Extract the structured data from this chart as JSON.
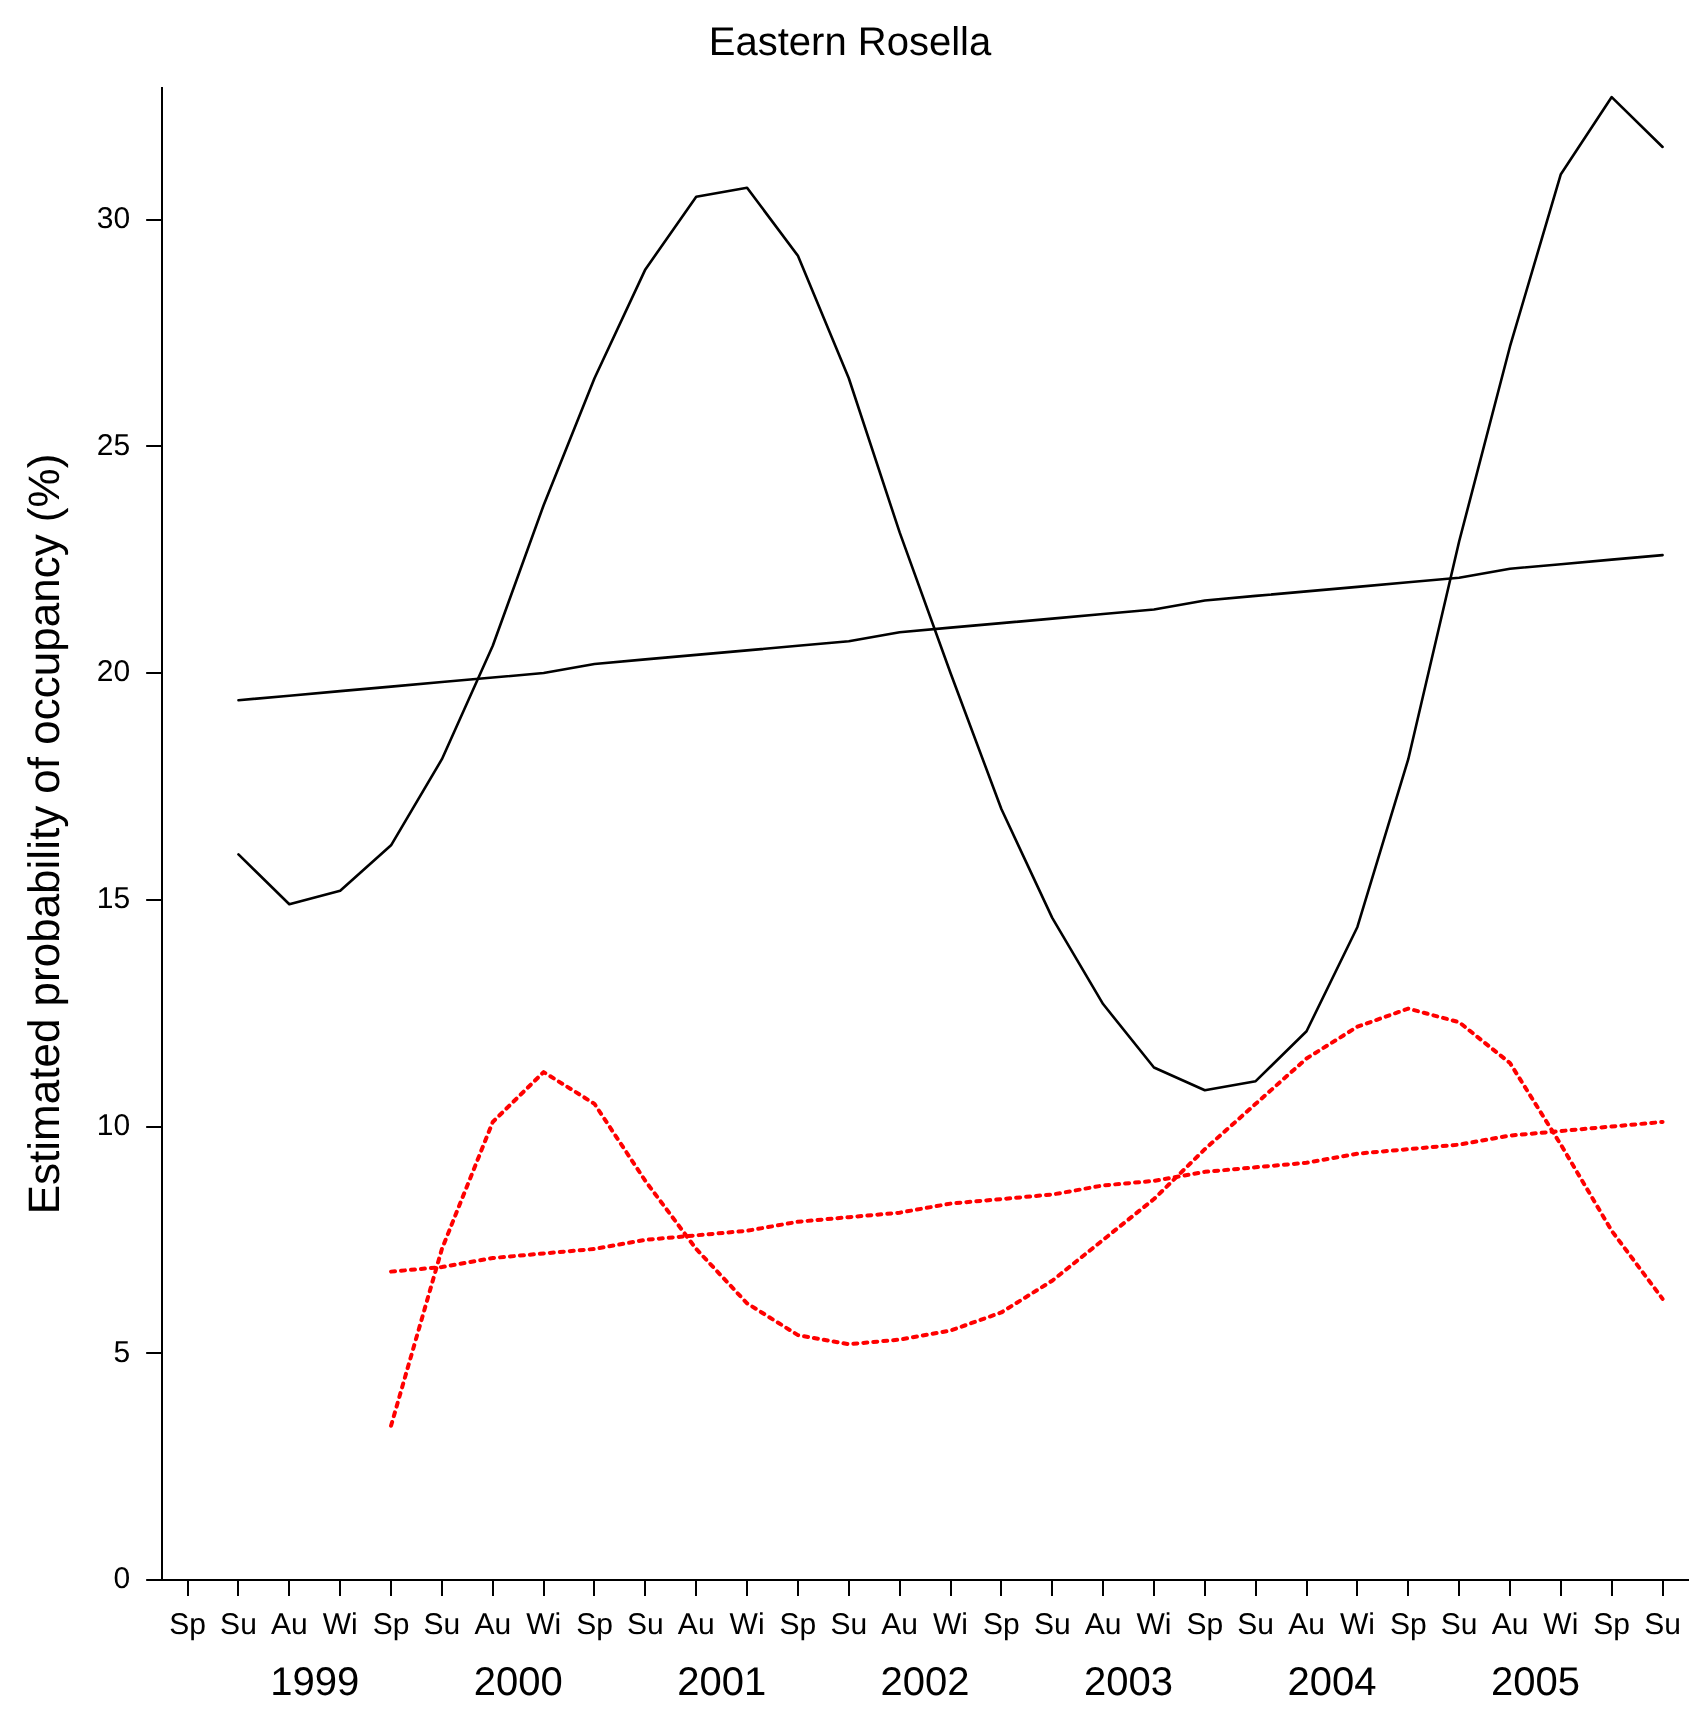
{
  "chart_data": {
    "type": "line",
    "title": "Eastern Rosella",
    "ylabel": "Estimated probability of occupancy (%)",
    "categories": [
      "Sp",
      "Su",
      "Au",
      "Wi",
      "Sp",
      "Su",
      "Au",
      "Wi",
      "Sp",
      "Su",
      "Au",
      "Wi",
      "Sp",
      "Su",
      "Au",
      "Wi",
      "Sp",
      "Su",
      "Au",
      "Wi",
      "Sp",
      "Su",
      "Au",
      "Wi",
      "Sp",
      "Su",
      "Au",
      "Wi",
      "Sp",
      "Su"
    ],
    "annotations": [
      "1999",
      "2000",
      "2001",
      "2002",
      "2003",
      "2004",
      "2005"
    ],
    "ylim": [
      0,
      32.9
    ],
    "yticks": [
      0,
      5,
      10,
      15,
      20,
      25,
      30
    ],
    "grid": false,
    "legend": false,
    "marker": "none",
    "series": [
      {
        "color": "#000000",
        "line_style": "solid",
        "values": [
          null,
          16.0,
          14.9,
          15.2,
          16.2,
          18.1,
          20.6,
          23.7,
          26.5,
          28.9,
          30.5,
          30.7,
          29.2,
          26.5,
          23.1,
          20.0,
          17.0,
          14.6,
          12.7,
          11.3,
          10.8,
          11.0,
          12.1,
          14.4,
          18.1,
          22.9,
          27.2,
          31.0,
          32.7,
          31.6
        ]
      },
      {
        "color": "#000000",
        "line_style": "solid",
        "values": [
          null,
          19.4,
          19.5,
          19.6,
          19.7,
          19.8,
          19.9,
          20.0,
          20.2,
          20.3,
          20.4,
          20.5,
          20.6,
          20.7,
          20.9,
          21.0,
          21.1,
          21.2,
          21.3,
          21.4,
          21.6,
          21.7,
          21.8,
          21.9,
          22.0,
          22.1,
          22.3,
          22.4,
          22.5,
          22.6
        ]
      },
      {
        "color": "#ff0000",
        "line_style": "dotted",
        "values": [
          null,
          null,
          null,
          null,
          3.4,
          7.3,
          10.1,
          11.2,
          10.5,
          8.8,
          7.3,
          6.1,
          5.4,
          5.2,
          5.3,
          5.5,
          5.9,
          6.6,
          7.5,
          8.4,
          9.5,
          10.5,
          11.5,
          12.2,
          12.6,
          12.3,
          11.4,
          9.6,
          7.7,
          6.2
        ]
      },
      {
        "color": "#ff0000",
        "line_style": "dotted",
        "values": [
          null,
          null,
          null,
          null,
          6.8,
          6.9,
          7.1,
          7.2,
          7.3,
          7.5,
          7.6,
          7.7,
          7.9,
          8.0,
          8.1,
          8.3,
          8.4,
          8.5,
          8.7,
          8.8,
          9.0,
          9.1,
          9.2,
          9.4,
          9.5,
          9.6,
          9.8,
          9.9,
          10.0,
          10.1
        ]
      }
    ]
  }
}
